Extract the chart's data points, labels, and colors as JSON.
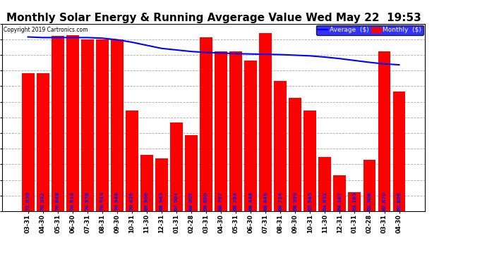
{
  "title": "Monthly Solar Energy & Running Avgerage Value Wed May 22  19:53",
  "copyright": "Copyright 2019 Cartronics.com",
  "categories": [
    "03-31",
    "04-30",
    "05-31",
    "06-30",
    "07-31",
    "08-31",
    "09-30",
    "10-31",
    "11-30",
    "12-31",
    "01-31",
    "02-28",
    "03-31",
    "04-30",
    "05-31",
    "06-30",
    "07-31",
    "08-31",
    "09-30",
    "10-31",
    "11-30",
    "12-31",
    "01-31",
    "02-28",
    "03-31",
    "04-30"
  ],
  "bar_values": [
    59.5,
    59.5,
    71.5,
    71.8,
    70.5,
    70.5,
    70.5,
    47.5,
    33.0,
    32.0,
    43.5,
    39.5,
    71.0,
    66.5,
    66.5,
    63.5,
    72.5,
    57.0,
    51.5,
    47.5,
    32.5,
    26.5,
    21.0,
    31.5,
    66.5,
    53.5
  ],
  "avg_values": [
    71.2,
    71.0,
    71.0,
    71.0,
    71.0,
    70.8,
    70.3,
    69.5,
    68.5,
    67.5,
    67.0,
    66.5,
    66.2,
    66.0,
    65.8,
    65.7,
    65.6,
    65.5,
    65.3,
    65.1,
    64.7,
    64.2,
    63.6,
    63.0,
    62.5,
    62.2
  ],
  "bar_labels": [
    "71.030",
    "70.592",
    "70.648",
    "70.914",
    "70.958",
    "70.914",
    "70.948",
    "70.429",
    "69.906",
    "68.943",
    "67.503",
    "66.005",
    "66.860",
    "66.797",
    "66.784",
    "66.448",
    "66.849",
    "66.714",
    "66.399",
    "65.945",
    "64.991",
    "64.167",
    "63.165",
    "62.508",
    "62.870",
    "62.896"
  ],
  "bar_color": "#FF0000",
  "avg_line_color": "#0000FF",
  "label_color": "#0000FF",
  "background_color": "#FFFFFF",
  "grid_color": "#AAAAAA",
  "title_fontsize": 11,
  "yticks": [
    14.92,
    19.96,
    25.01,
    30.05,
    35.1,
    40.14,
    45.19,
    50.23,
    55.28,
    60.32,
    65.37,
    70.41,
    75.46
  ],
  "ymin": 14.92,
  "ymax": 75.46,
  "legend_avg_label": "Average  ($)",
  "legend_monthly_label": "Monthly  ($)"
}
